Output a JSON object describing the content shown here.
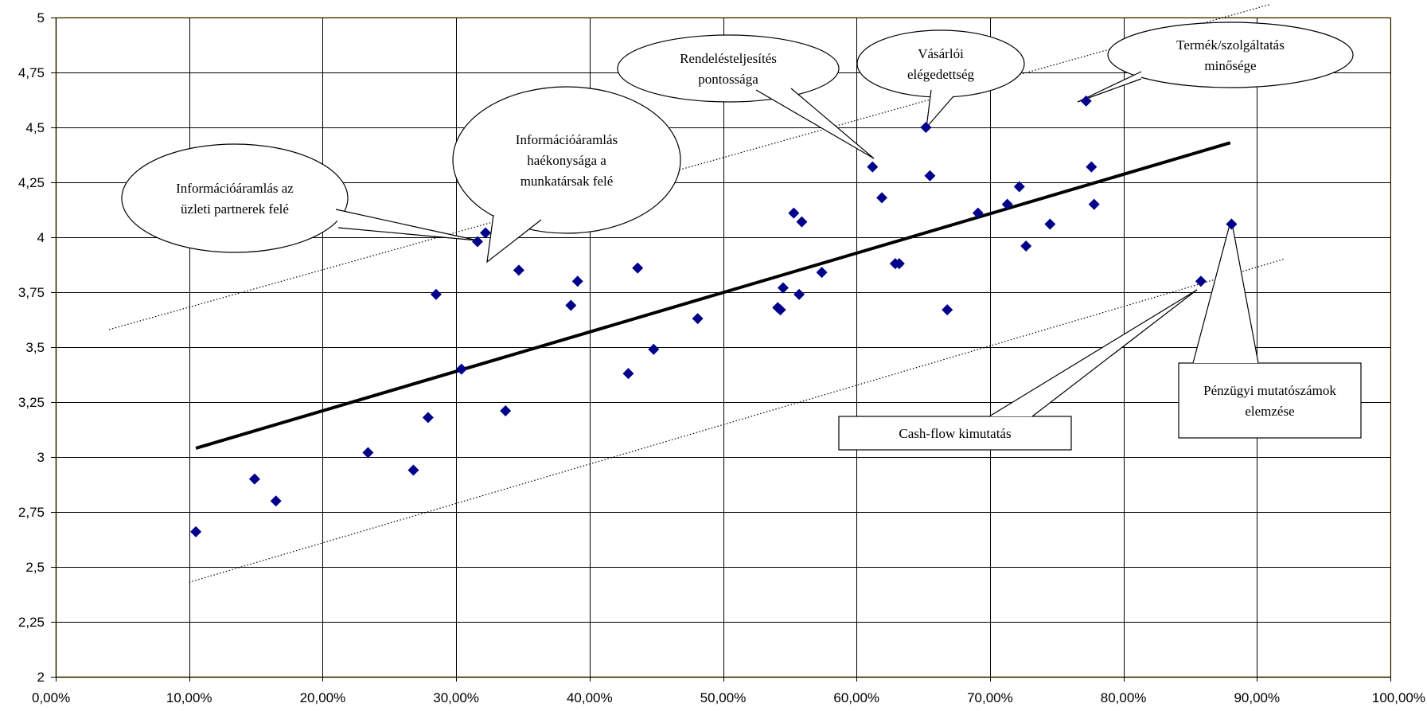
{
  "chart_data": {
    "type": "scatter",
    "title": "",
    "xlabel": "",
    "ylabel": "",
    "xlim": [
      0,
      1
    ],
    "ylim": [
      2,
      5
    ],
    "grid": true,
    "x_tick_labels": [
      "0,00%",
      "10,00%",
      "20,00%",
      "30,00%",
      "40,00%",
      "50,00%",
      "60,00%",
      "70,00%",
      "80,00%",
      "90,00%",
      "100,00%"
    ],
    "y_tick_labels": [
      "2",
      "2,25",
      "2,5",
      "2,75",
      "3",
      "3,25",
      "3,5",
      "3,75",
      "4",
      "4,25",
      "4,5",
      "4,75",
      "5"
    ],
    "colors": {
      "marker": "#00008B",
      "plot_background": "#FFFFFF",
      "plot_border": "#F2E27A",
      "grid": "#000000",
      "trend": "#000000"
    },
    "series": [
      {
        "marker": "diamond",
        "points": [
          {
            "x": 0.105,
            "y": 2.66
          },
          {
            "x": 0.149,
            "y": 2.9
          },
          {
            "x": 0.165,
            "y": 2.8
          },
          {
            "x": 0.234,
            "y": 3.02
          },
          {
            "x": 0.268,
            "y": 2.94
          },
          {
            "x": 0.279,
            "y": 3.18
          },
          {
            "x": 0.285,
            "y": 3.74
          },
          {
            "x": 0.304,
            "y": 3.4
          },
          {
            "x": 0.316,
            "y": 3.98
          },
          {
            "x": 0.322,
            "y": 4.02
          },
          {
            "x": 0.337,
            "y": 3.21
          },
          {
            "x": 0.347,
            "y": 3.85
          },
          {
            "x": 0.386,
            "y": 3.69
          },
          {
            "x": 0.391,
            "y": 3.8
          },
          {
            "x": 0.429,
            "y": 3.38
          },
          {
            "x": 0.436,
            "y": 3.86
          },
          {
            "x": 0.448,
            "y": 3.49
          },
          {
            "x": 0.481,
            "y": 3.63
          },
          {
            "x": 0.541,
            "y": 3.68
          },
          {
            "x": 0.543,
            "y": 3.67
          },
          {
            "x": 0.545,
            "y": 3.77
          },
          {
            "x": 0.553,
            "y": 4.11
          },
          {
            "x": 0.557,
            "y": 3.74
          },
          {
            "x": 0.559,
            "y": 4.07
          },
          {
            "x": 0.574,
            "y": 3.84
          },
          {
            "x": 0.612,
            "y": 4.32
          },
          {
            "x": 0.619,
            "y": 4.18
          },
          {
            "x": 0.629,
            "y": 3.88
          },
          {
            "x": 0.632,
            "y": 3.88
          },
          {
            "x": 0.652,
            "y": 4.5
          },
          {
            "x": 0.655,
            "y": 4.28
          },
          {
            "x": 0.668,
            "y": 3.67
          },
          {
            "x": 0.691,
            "y": 4.11
          },
          {
            "x": 0.713,
            "y": 4.15
          },
          {
            "x": 0.722,
            "y": 4.23
          },
          {
            "x": 0.727,
            "y": 3.96
          },
          {
            "x": 0.745,
            "y": 4.06
          },
          {
            "x": 0.772,
            "y": 4.62
          },
          {
            "x": 0.776,
            "y": 4.32
          },
          {
            "x": 0.778,
            "y": 4.15
          },
          {
            "x": 0.858,
            "y": 3.8
          },
          {
            "x": 0.881,
            "y": 4.06
          }
        ]
      }
    ],
    "trend_lines": [
      {
        "style": "solid",
        "from": {
          "x": 0.105,
          "y": 3.04
        },
        "to": {
          "x": 0.88,
          "y": 4.43
        }
      },
      {
        "style": "dotted",
        "from": {
          "x": 0.04,
          "y": 3.58
        },
        "to": {
          "x": 0.91,
          "y": 5.06
        }
      },
      {
        "style": "dotted",
        "from": {
          "x": 0.1,
          "y": 2.43
        },
        "to": {
          "x": 0.92,
          "y": 3.9
        }
      }
    ],
    "annotations": [
      {
        "id": "info-partners",
        "shape": "ellipse",
        "lines": [
          "Információáramlás az",
          "üzleti partnerek felé"
        ],
        "target": {
          "x": 0.316,
          "y": 3.98
        }
      },
      {
        "id": "info-staff",
        "shape": "ellipse",
        "lines": [
          "Információáramlás",
          "haékonysága a",
          "munkatársak felé"
        ],
        "target": {
          "x": 0.322,
          "y": 4.02
        }
      },
      {
        "id": "order-accuracy",
        "shape": "ellipse",
        "lines": [
          "Rendelésteljesítés",
          "pontossága"
        ],
        "target": {
          "x": 0.612,
          "y": 4.32
        }
      },
      {
        "id": "customer-satisfaction",
        "shape": "ellipse",
        "lines": [
          "Vásárlói",
          "elégedettség"
        ],
        "target": {
          "x": 0.652,
          "y": 4.5
        }
      },
      {
        "id": "product-quality",
        "shape": "ellipse",
        "lines": [
          "Termék/szolgáltatás",
          "minősége"
        ],
        "target": {
          "x": 0.772,
          "y": 4.62
        }
      },
      {
        "id": "cash-flow",
        "shape": "rect",
        "lines": [
          "Cash-flow kimutatás"
        ],
        "target": {
          "x": 0.858,
          "y": 3.8
        }
      },
      {
        "id": "financial-ratios",
        "shape": "rect",
        "lines": [
          "Pénzügyi mutatószámok",
          "elemzése"
        ],
        "target": {
          "x": 0.881,
          "y": 4.06
        }
      }
    ]
  }
}
